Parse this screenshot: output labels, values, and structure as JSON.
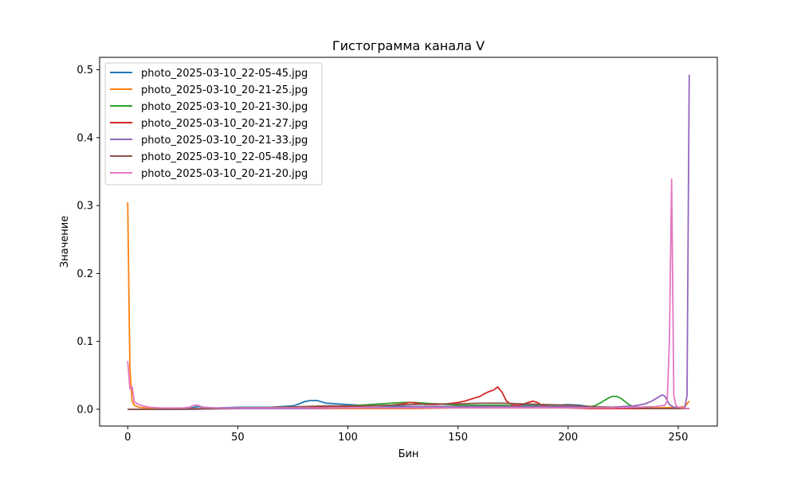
{
  "chart_data": {
    "type": "line",
    "title": "Гистограмма канала V",
    "xlabel": "Бин",
    "ylabel": "Значение",
    "xlim": [
      -12.75,
      267.75
    ],
    "ylim": [
      -0.0247,
      0.5183
    ],
    "xticks": [
      0,
      50,
      100,
      150,
      200,
      250
    ],
    "yticks": [
      0.0,
      0.1,
      0.2,
      0.3,
      0.4,
      0.5
    ],
    "xtick_labels": [
      "0",
      "50",
      "100",
      "150",
      "200",
      "250"
    ],
    "ytick_labels": [
      "0.0",
      "0.1",
      "0.2",
      "0.3",
      "0.4",
      "0.5"
    ],
    "legend_position": "upper-left",
    "grid": false,
    "series": [
      {
        "name": "photo_2025-03-10_22-05-45.jpg",
        "color": "#1f77b4",
        "points": [
          [
            0,
            0.0
          ],
          [
            1,
            0.0
          ],
          [
            5,
            0.0
          ],
          [
            10,
            0.0
          ],
          [
            20,
            0.0
          ],
          [
            28,
            0.001
          ],
          [
            30,
            0.003
          ],
          [
            32,
            0.004
          ],
          [
            35,
            0.003
          ],
          [
            40,
            0.002
          ],
          [
            50,
            0.003
          ],
          [
            60,
            0.003
          ],
          [
            65,
            0.003
          ],
          [
            70,
            0.004
          ],
          [
            75,
            0.005
          ],
          [
            78,
            0.008
          ],
          [
            80,
            0.011
          ],
          [
            83,
            0.013
          ],
          [
            86,
            0.013
          ],
          [
            88,
            0.011
          ],
          [
            90,
            0.009
          ],
          [
            95,
            0.008
          ],
          [
            100,
            0.007
          ],
          [
            105,
            0.006
          ],
          [
            110,
            0.005
          ],
          [
            115,
            0.005
          ],
          [
            120,
            0.005
          ],
          [
            125,
            0.004
          ],
          [
            130,
            0.004
          ],
          [
            140,
            0.004
          ],
          [
            150,
            0.004
          ],
          [
            160,
            0.004
          ],
          [
            170,
            0.005
          ],
          [
            180,
            0.006
          ],
          [
            190,
            0.005
          ],
          [
            195,
            0.006
          ],
          [
            200,
            0.007
          ],
          [
            205,
            0.006
          ],
          [
            210,
            0.004
          ],
          [
            215,
            0.003
          ],
          [
            220,
            0.002
          ],
          [
            230,
            0.002
          ],
          [
            240,
            0.002
          ],
          [
            250,
            0.001
          ],
          [
            255,
            0.001
          ]
        ]
      },
      {
        "name": "photo_2025-03-10_20-21-25.jpg",
        "color": "#ff7f0e",
        "points": [
          [
            0,
            0.305
          ],
          [
            1,
            0.06
          ],
          [
            2,
            0.012
          ],
          [
            3,
            0.006
          ],
          [
            5,
            0.003
          ],
          [
            8,
            0.002
          ],
          [
            10,
            0.001
          ],
          [
            20,
            0.001
          ],
          [
            30,
            0.001
          ],
          [
            50,
            0.001
          ],
          [
            80,
            0.001
          ],
          [
            100,
            0.001
          ],
          [
            130,
            0.001
          ],
          [
            150,
            0.002
          ],
          [
            180,
            0.002
          ],
          [
            200,
            0.002
          ],
          [
            220,
            0.002
          ],
          [
            240,
            0.002
          ],
          [
            250,
            0.003
          ],
          [
            253,
            0.004
          ],
          [
            254,
            0.008
          ],
          [
            255,
            0.012
          ]
        ]
      },
      {
        "name": "photo_2025-03-10_20-21-30.jpg",
        "color": "#2ca02c",
        "points": [
          [
            0,
            0.0
          ],
          [
            10,
            0.0
          ],
          [
            20,
            0.0
          ],
          [
            30,
            0.0
          ],
          [
            40,
            0.001
          ],
          [
            50,
            0.002
          ],
          [
            60,
            0.002
          ],
          [
            70,
            0.003
          ],
          [
            80,
            0.003
          ],
          [
            90,
            0.004
          ],
          [
            100,
            0.005
          ],
          [
            110,
            0.007
          ],
          [
            115,
            0.008
          ],
          [
            120,
            0.009
          ],
          [
            125,
            0.01
          ],
          [
            130,
            0.01
          ],
          [
            135,
            0.009
          ],
          [
            140,
            0.008
          ],
          [
            145,
            0.007
          ],
          [
            150,
            0.006
          ],
          [
            160,
            0.006
          ],
          [
            170,
            0.006
          ],
          [
            180,
            0.005
          ],
          [
            190,
            0.005
          ],
          [
            200,
            0.004
          ],
          [
            205,
            0.004
          ],
          [
            210,
            0.004
          ],
          [
            212,
            0.005
          ],
          [
            215,
            0.01
          ],
          [
            218,
            0.016
          ],
          [
            220,
            0.019
          ],
          [
            222,
            0.019
          ],
          [
            224,
            0.016
          ],
          [
            226,
            0.011
          ],
          [
            228,
            0.006
          ],
          [
            230,
            0.004
          ],
          [
            235,
            0.002
          ],
          [
            240,
            0.001
          ],
          [
            245,
            0.001
          ],
          [
            250,
            0.001
          ],
          [
            255,
            0.001
          ]
        ]
      },
      {
        "name": "photo_2025-03-10_20-21-27.jpg",
        "color": "#d62728",
        "points": [
          [
            0,
            0.0
          ],
          [
            10,
            0.0
          ],
          [
            20,
            0.0
          ],
          [
            30,
            0.0
          ],
          [
            40,
            0.001
          ],
          [
            50,
            0.002
          ],
          [
            60,
            0.002
          ],
          [
            70,
            0.003
          ],
          [
            80,
            0.003
          ],
          [
            90,
            0.004
          ],
          [
            100,
            0.004
          ],
          [
            110,
            0.005
          ],
          [
            120,
            0.006
          ],
          [
            125,
            0.008
          ],
          [
            128,
            0.01
          ],
          [
            131,
            0.009
          ],
          [
            135,
            0.007
          ],
          [
            140,
            0.007
          ],
          [
            145,
            0.008
          ],
          [
            150,
            0.01
          ],
          [
            153,
            0.012
          ],
          [
            155,
            0.014
          ],
          [
            158,
            0.017
          ],
          [
            160,
            0.019
          ],
          [
            162,
            0.023
          ],
          [
            164,
            0.026
          ],
          [
            166,
            0.028
          ],
          [
            168,
            0.033
          ],
          [
            170,
            0.025
          ],
          [
            172,
            0.012
          ],
          [
            175,
            0.006
          ],
          [
            178,
            0.006
          ],
          [
            182,
            0.01
          ],
          [
            184,
            0.012
          ],
          [
            186,
            0.01
          ],
          [
            188,
            0.006
          ],
          [
            192,
            0.003
          ],
          [
            200,
            0.002
          ],
          [
            210,
            0.001
          ],
          [
            220,
            0.001
          ],
          [
            230,
            0.001
          ],
          [
            240,
            0.001
          ],
          [
            250,
            0.001
          ],
          [
            255,
            0.001
          ]
        ]
      },
      {
        "name": "photo_2025-03-10_20-21-33.jpg",
        "color": "#9467bd",
        "points": [
          [
            0,
            0.0
          ],
          [
            10,
            0.0
          ],
          [
            20,
            0.0
          ],
          [
            30,
            0.0
          ],
          [
            50,
            0.001
          ],
          [
            80,
            0.001
          ],
          [
            100,
            0.002
          ],
          [
            120,
            0.003
          ],
          [
            140,
            0.004
          ],
          [
            160,
            0.004
          ],
          [
            180,
            0.004
          ],
          [
            200,
            0.004
          ],
          [
            210,
            0.003
          ],
          [
            220,
            0.003
          ],
          [
            225,
            0.004
          ],
          [
            230,
            0.005
          ],
          [
            235,
            0.008
          ],
          [
            238,
            0.012
          ],
          [
            240,
            0.016
          ],
          [
            242,
            0.02
          ],
          [
            243,
            0.021
          ],
          [
            244,
            0.019
          ],
          [
            245,
            0.013
          ],
          [
            246,
            0.007
          ],
          [
            248,
            0.003
          ],
          [
            250,
            0.002
          ],
          [
            252,
            0.002
          ],
          [
            253,
            0.003
          ],
          [
            254,
            0.02
          ],
          [
            255,
            0.493
          ]
        ]
      },
      {
        "name": "photo_2025-03-10_22-05-48.jpg",
        "color": "#8c564b",
        "points": [
          [
            0,
            0.0
          ],
          [
            10,
            0.0
          ],
          [
            20,
            0.0
          ],
          [
            30,
            0.001
          ],
          [
            40,
            0.001
          ],
          [
            50,
            0.002
          ],
          [
            60,
            0.002
          ],
          [
            70,
            0.003
          ],
          [
            80,
            0.004
          ],
          [
            90,
            0.005
          ],
          [
            100,
            0.005
          ],
          [
            110,
            0.005
          ],
          [
            120,
            0.006
          ],
          [
            130,
            0.007
          ],
          [
            140,
            0.008
          ],
          [
            150,
            0.008
          ],
          [
            160,
            0.009
          ],
          [
            170,
            0.009
          ],
          [
            180,
            0.008
          ],
          [
            190,
            0.007
          ],
          [
            200,
            0.006
          ],
          [
            210,
            0.004
          ],
          [
            220,
            0.003
          ],
          [
            230,
            0.002
          ],
          [
            240,
            0.001
          ],
          [
            250,
            0.001
          ],
          [
            255,
            0.001
          ]
        ]
      },
      {
        "name": "photo_2025-03-10_20-21-20.jpg",
        "color": "#e377c2",
        "points": [
          [
            0,
            0.071
          ],
          [
            1,
            0.03
          ],
          [
            2,
            0.033
          ],
          [
            3,
            0.011
          ],
          [
            5,
            0.007
          ],
          [
            8,
            0.004
          ],
          [
            10,
            0.003
          ],
          [
            15,
            0.002
          ],
          [
            20,
            0.002
          ],
          [
            25,
            0.002
          ],
          [
            28,
            0.003
          ],
          [
            30,
            0.006
          ],
          [
            32,
            0.006
          ],
          [
            34,
            0.003
          ],
          [
            40,
            0.002
          ],
          [
            50,
            0.002
          ],
          [
            60,
            0.002
          ],
          [
            70,
            0.002
          ],
          [
            80,
            0.002
          ],
          [
            100,
            0.002
          ],
          [
            120,
            0.002
          ],
          [
            140,
            0.002
          ],
          [
            160,
            0.002
          ],
          [
            180,
            0.002
          ],
          [
            200,
            0.002
          ],
          [
            220,
            0.002
          ],
          [
            230,
            0.003
          ],
          [
            240,
            0.004
          ],
          [
            244,
            0.006
          ],
          [
            245,
            0.012
          ],
          [
            246,
            0.1
          ],
          [
            247,
            0.339
          ],
          [
            248,
            0.02
          ],
          [
            249,
            0.005
          ],
          [
            250,
            0.003
          ],
          [
            252,
            0.002
          ],
          [
            255,
            0.001
          ]
        ]
      }
    ]
  }
}
